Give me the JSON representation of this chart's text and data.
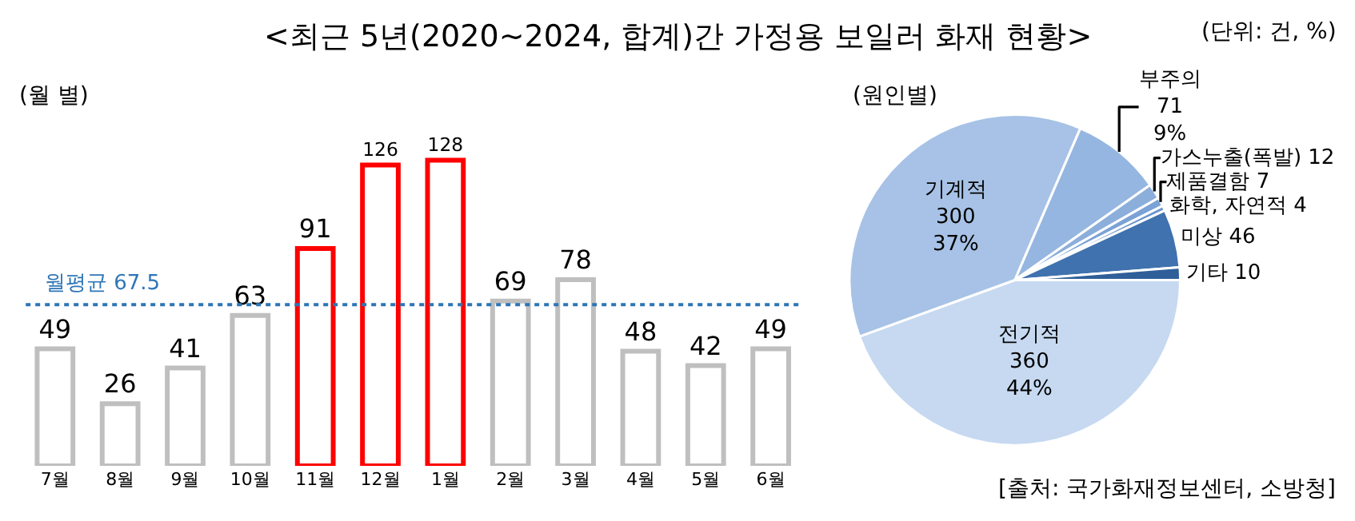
{
  "chart_data": [
    {
      "type": "bar",
      "title": "<최근 5년(2020~2024, 합계)간 가정용 보일러 화재 현황>",
      "subtitle": "(월 별)",
      "categories": [
        "7월",
        "8월",
        "9월",
        "10월",
        "11월",
        "12월",
        "1월",
        "2월",
        "3월",
        "4월",
        "5월",
        "6월"
      ],
      "values": [
        49,
        26,
        41,
        63,
        91,
        126,
        128,
        69,
        78,
        48,
        42,
        49
      ],
      "colors": [
        "#bfbfbf",
        "#bfbfbf",
        "#bfbfbf",
        "#bfbfbf",
        "#ff0000",
        "#ff0000",
        "#ff0000",
        "#bfbfbf",
        "#bfbfbf",
        "#bfbfbf",
        "#bfbfbf",
        "#bfbfbf"
      ],
      "data_labels": true,
      "ref_lines": [
        {
          "axis": "y",
          "value": 67.5,
          "label": "월평균 67.5",
          "color": "#2e75b6",
          "line_style": "dotted"
        }
      ],
      "annotations": [
        "(단위: 건, %)"
      ]
    },
    {
      "type": "pie",
      "subtitle": "(원인별)",
      "categories": [
        "전기적",
        "기계적",
        "부주의",
        "가스누출(폭발)",
        "제품결함",
        "화학, 자연적",
        "미상",
        "기타"
      ],
      "values": [
        360,
        300,
        71,
        12,
        7,
        4,
        46,
        10
      ],
      "value_labels": [
        "360\n44%",
        "300\n37%",
        "71\n9%",
        "12",
        "7",
        "4",
        "46",
        "10"
      ],
      "colors": [
        "#c6d9f1",
        "#a7c2e6",
        "#95b6e0",
        "#8caedb",
        "#7ba2d6",
        "#6a95cd",
        "#3f72ae",
        "#2f5f99"
      ],
      "annotations": [
        "[출처: 국가화재정보센터, 소방청]"
      ]
    }
  ]
}
